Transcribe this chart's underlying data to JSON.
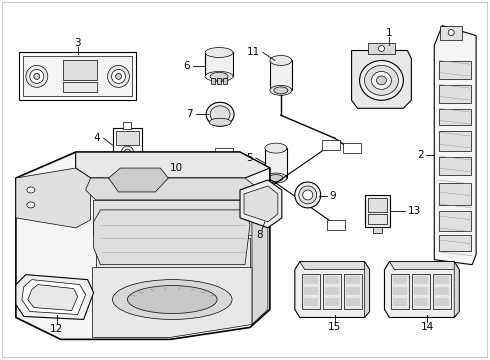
{
  "background_color": "#ffffff",
  "line_color": "#000000",
  "text_color": "#000000",
  "figsize": [
    4.9,
    3.6
  ],
  "dpi": 100,
  "lw_thin": 0.5,
  "lw_med": 0.8,
  "lw_thick": 1.2
}
